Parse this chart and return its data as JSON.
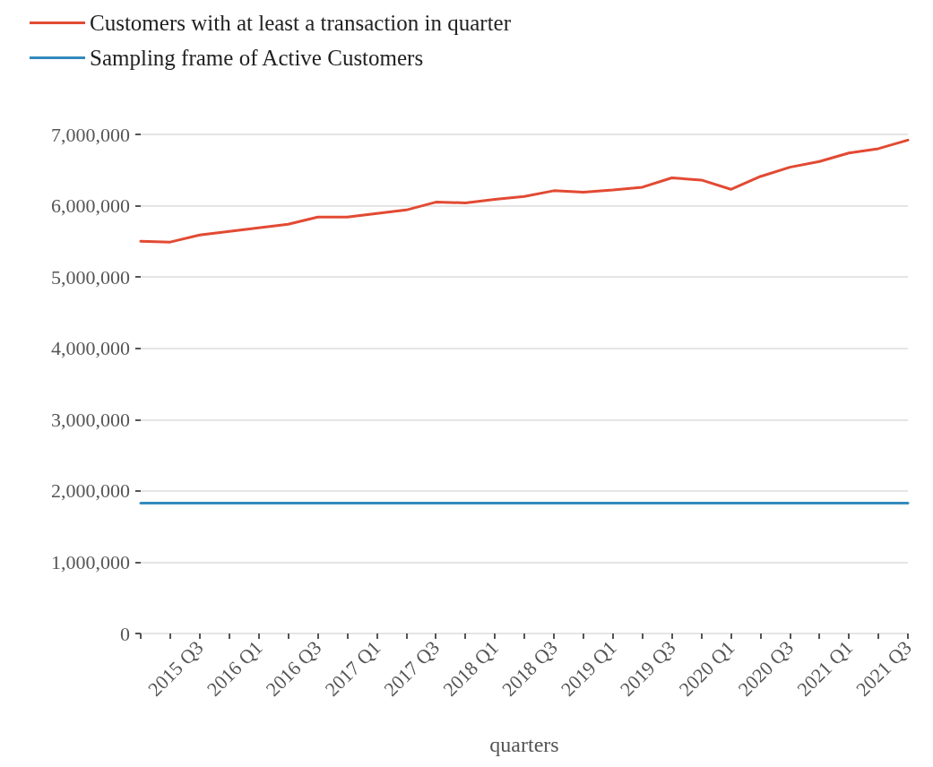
{
  "chart_data": {
    "type": "line",
    "xlabel": "quarters",
    "categories": [
      null,
      null,
      "2015 Q3",
      null,
      "2016 Q1",
      null,
      "2016 Q3",
      null,
      "2017 Q1",
      null,
      "2017 Q3",
      null,
      "2018 Q1",
      null,
      "2018 Q3",
      null,
      "2019 Q1",
      null,
      "2019 Q3",
      null,
      "2020 Q1",
      null,
      "2020 Q3",
      null,
      "2021 Q1",
      null,
      "2021 Q3"
    ],
    "series": [
      {
        "name": "Customers with at least a transaction in quarter",
        "color": "#e24a33",
        "values": [
          5500000,
          5490000,
          5590000,
          5640000,
          5690000,
          5740000,
          5840000,
          5840000,
          5890000,
          5940000,
          6050000,
          6040000,
          6090000,
          6130000,
          6210000,
          6190000,
          6220000,
          6260000,
          6390000,
          6360000,
          6230000,
          6410000,
          6540000,
          6620000,
          6740000,
          6800000,
          6920000
        ]
      },
      {
        "name": "Sampling frame of Active Customers",
        "color": "#348abd",
        "values": [
          1830000,
          1830000,
          1830000,
          1830000,
          1830000,
          1830000,
          1830000,
          1830000,
          1830000,
          1830000,
          1830000,
          1830000,
          1830000,
          1830000,
          1830000,
          1830000,
          1830000,
          1830000,
          1830000,
          1830000,
          1830000,
          1830000,
          1830000,
          1830000,
          1830000,
          1830000,
          1830000
        ]
      }
    ],
    "ylim": [
      0,
      7000000
    ],
    "yticks": [
      0,
      {
        "value": 1000000,
        "label": "1,000,000"
      },
      {
        "value": 2000000,
        "label": "2,000,000"
      },
      {
        "value": 3000000,
        "label": "3,000,000"
      },
      {
        "value": 4000000,
        "label": "4,000,000"
      },
      {
        "value": 5000000,
        "label": "5,000,000"
      },
      {
        "value": 6000000,
        "label": "6,000,000"
      },
      {
        "value": 7000000,
        "label": "7,000,000"
      }
    ],
    "grid": "y",
    "legend": "top left",
    "marker": "none",
    "line_style": "solid"
  }
}
